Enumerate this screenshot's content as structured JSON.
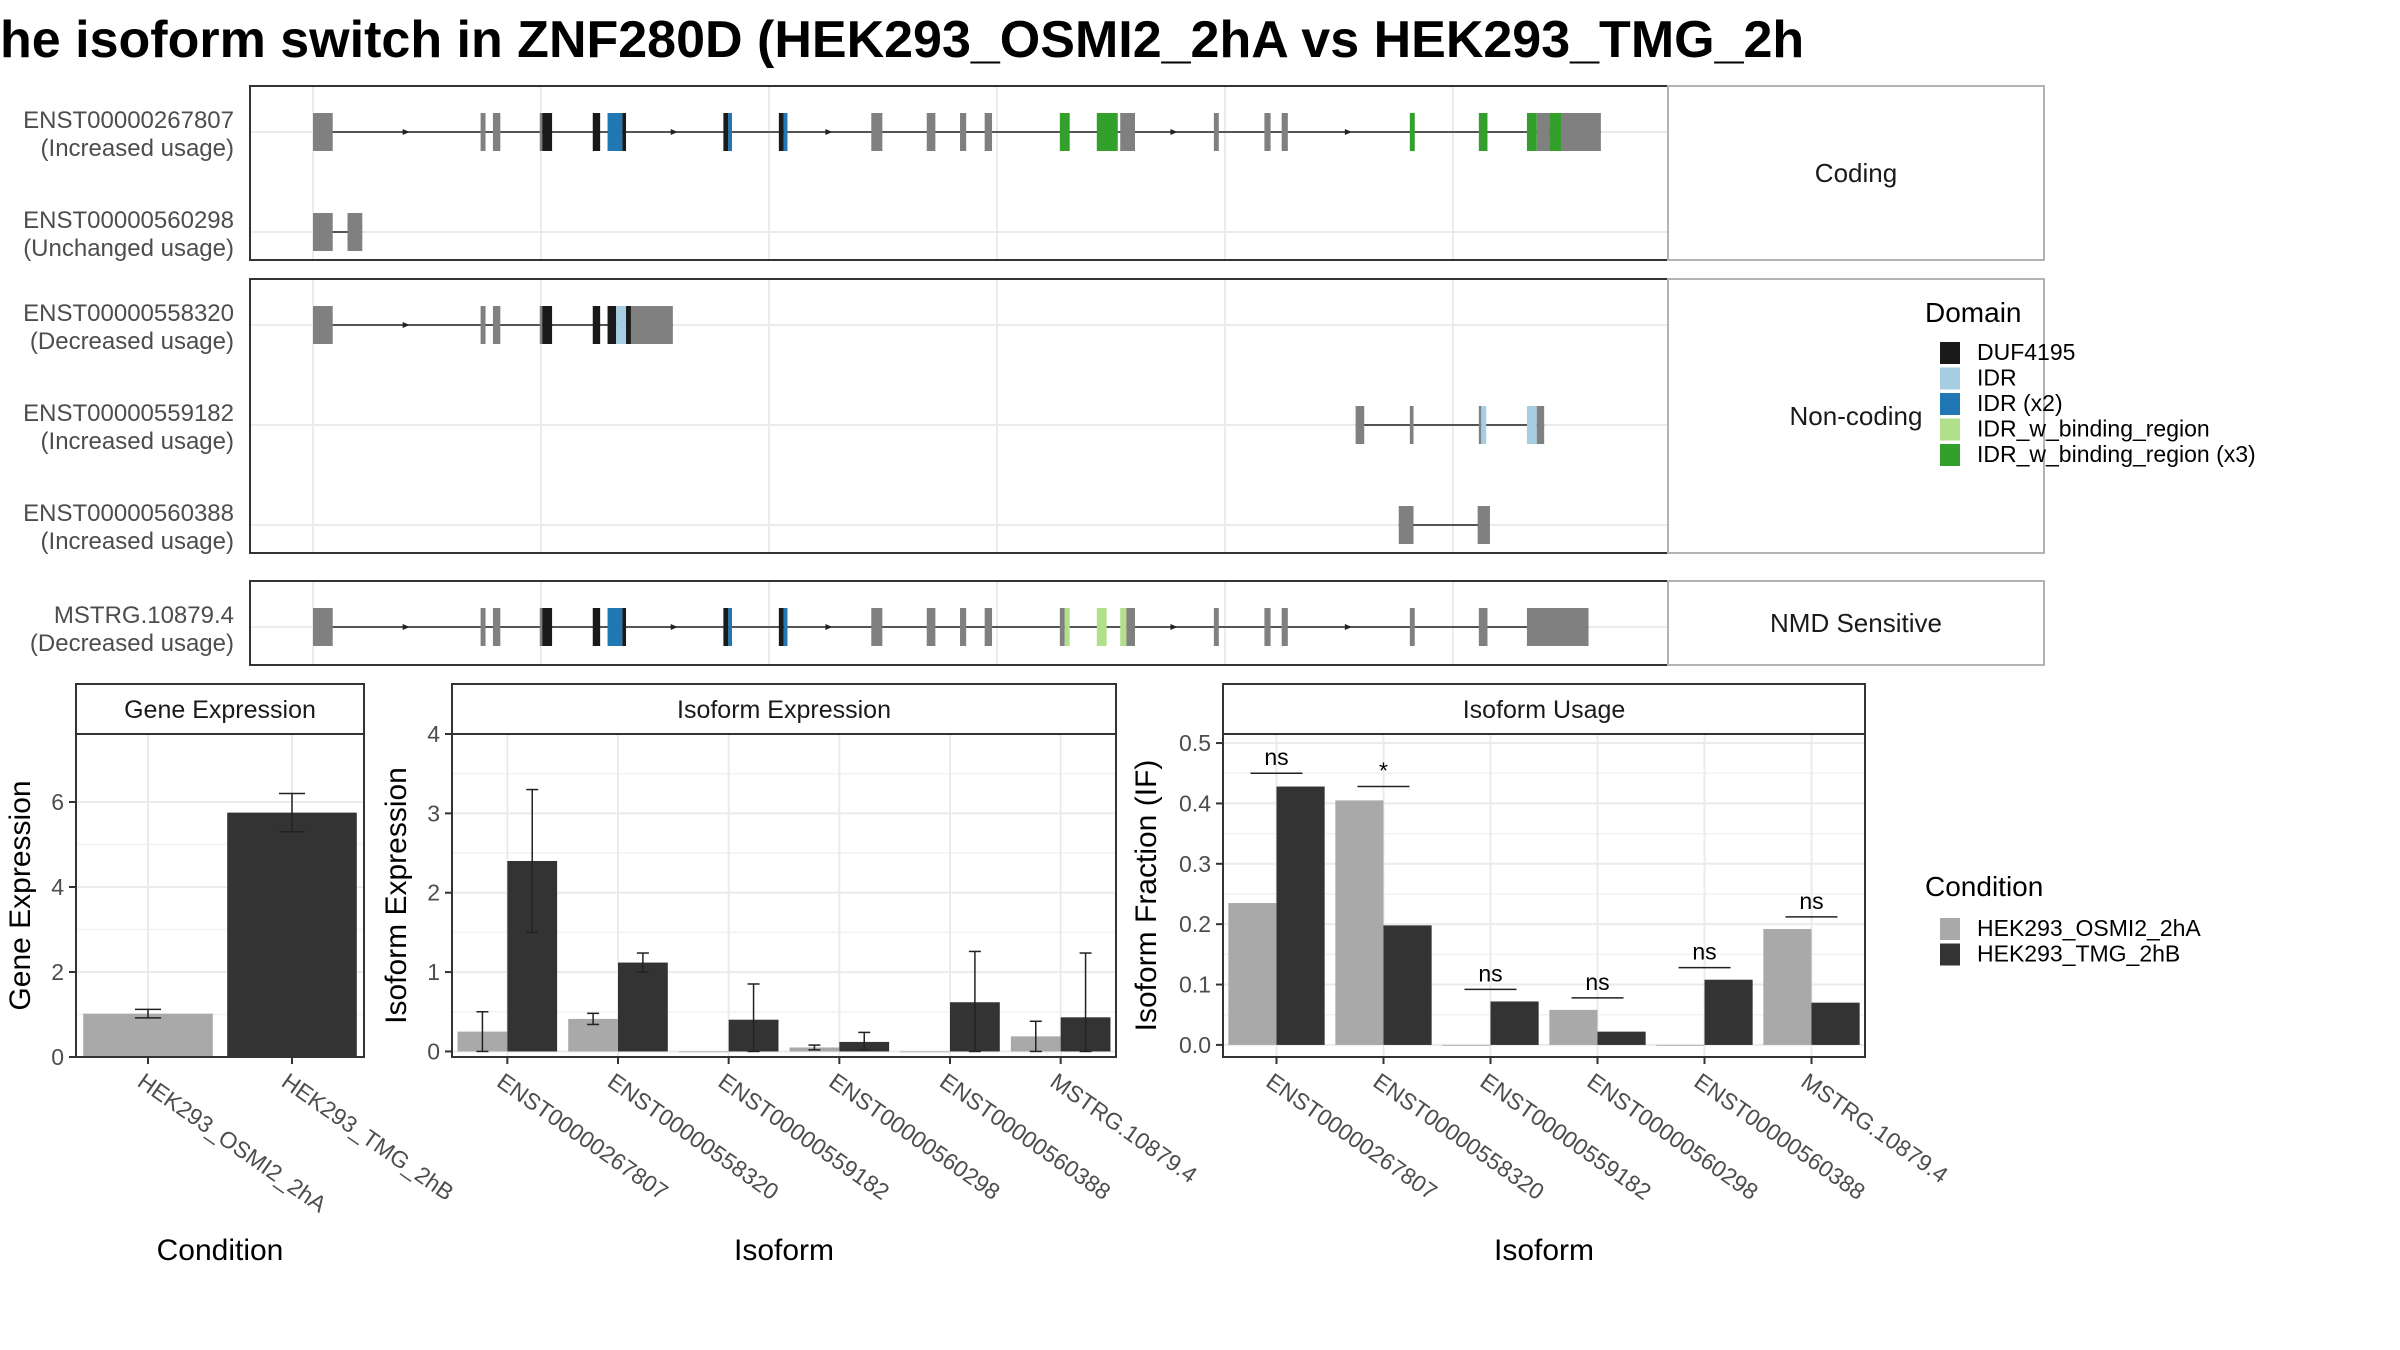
{
  "title": "he isoform switch in ZNF280D (HEK293_OSMI2_2hA vs HEK293_TMG_2h",
  "domain_colors": {
    "DUF4195": "#1a1a1a",
    "IDR": "#a6cee3",
    "IDR (x2)": "#1f78b4",
    "IDR_w_binding_region": "#b2df8a",
    "IDR_w_binding_region (x3)": "#33a02c",
    "none": "#808080"
  },
  "condition_colors": {
    "HEK293_OSMI2_2hA": "#a9a9a9",
    "HEK293_TMG_2hB": "#333333"
  },
  "legend_domain": {
    "title": "Domain",
    "items": [
      "DUF4195",
      "IDR",
      "IDR (x2)",
      "IDR_w_binding_region",
      "IDR_w_binding_region (x3)"
    ]
  },
  "legend_condition": {
    "title": "Condition",
    "items": [
      "HEK293_OSMI2_2hA",
      "HEK293_TMG_2hB"
    ]
  },
  "structure": {
    "panels": [
      {
        "strip": "Coding",
        "isoforms": [
          {
            "id": "ENST00000267807",
            "usage": "(Increased usage)",
            "start": 0,
            "end": 1045,
            "exons": [
              [
                0,
                16,
                "none"
              ],
              [
                136,
                140,
                "none"
              ],
              [
                146,
                152,
                "none"
              ],
              [
                184,
                186,
                "none"
              ],
              [
                186,
                194,
                "DUF4195"
              ],
              [
                227,
                233,
                "DUF4195"
              ],
              [
                239,
                251,
                "IDR (x2)"
              ],
              [
                251,
                254,
                "DUF4195"
              ],
              [
                333,
                337,
                "DUF4195"
              ],
              [
                337,
                340,
                "IDR (x2)"
              ],
              [
                378,
                382,
                "DUF4195"
              ],
              [
                382,
                385,
                "IDR (x2)"
              ],
              [
                453,
                462,
                "none"
              ],
              [
                498,
                505,
                "none"
              ],
              [
                525,
                530,
                "none"
              ],
              [
                545,
                551,
                "none"
              ],
              [
                606,
                614,
                "IDR_w_binding_region (x3)"
              ],
              [
                636,
                653,
                "IDR_w_binding_region (x3)"
              ],
              [
                655,
                667,
                "none"
              ],
              [
                731,
                735,
                "none"
              ],
              [
                772,
                777,
                "none"
              ],
              [
                786,
                791,
                "none"
              ],
              [
                890,
                894,
                "IDR_w_binding_region (x3)"
              ],
              [
                946,
                953,
                "IDR_w_binding_region (x3)"
              ],
              [
                985,
                993,
                "IDR_w_binding_region (x3)"
              ],
              [
                993,
                1003,
                "none"
              ],
              [
                1003,
                1013,
                "IDR_w_binding_region (x3)"
              ],
              [
                1013,
                1045,
                "none"
              ]
            ]
          },
          {
            "id": "ENST00000560298",
            "usage": "(Unchanged usage)",
            "start": 0,
            "end": 40,
            "exons": [
              [
                0,
                16,
                "none"
              ],
              [
                28,
                40,
                "none"
              ]
            ]
          }
        ]
      },
      {
        "strip": "Non-coding",
        "isoforms": [
          {
            "id": "ENST00000558320",
            "usage": "(Decreased usage)",
            "start": 0,
            "end": 292,
            "exons": [
              [
                0,
                16,
                "none"
              ],
              [
                136,
                140,
                "none"
              ],
              [
                146,
                152,
                "none"
              ],
              [
                184,
                186,
                "none"
              ],
              [
                186,
                194,
                "DUF4195"
              ],
              [
                227,
                233,
                "DUF4195"
              ],
              [
                239,
                246,
                "DUF4195"
              ],
              [
                246,
                254,
                "IDR"
              ],
              [
                254,
                258,
                "DUF4195"
              ],
              [
                258,
                292,
                "none"
              ]
            ]
          },
          {
            "id": "ENST00000559182",
            "usage": "(Increased usage)",
            "start": 846,
            "end": 999,
            "exons": [
              [
                846,
                853,
                "none"
              ],
              [
                890,
                893,
                "none"
              ],
              [
                946,
                948,
                "none"
              ],
              [
                948,
                952,
                "IDR"
              ],
              [
                985,
                993,
                "IDR"
              ],
              [
                993,
                999,
                "none"
              ]
            ]
          },
          {
            "id": "ENST00000560388",
            "usage": "(Increased usage)",
            "start": 881,
            "end": 955,
            "exons": [
              [
                881,
                893,
                "none"
              ],
              [
                945,
                955,
                "none"
              ]
            ]
          }
        ]
      },
      {
        "strip": "NMD Sensitive",
        "isoforms": [
          {
            "id": "MSTRG.10879.4",
            "usage": "(Decreased usage)",
            "start": 0,
            "end": 1035,
            "exons": [
              [
                0,
                16,
                "none"
              ],
              [
                136,
                140,
                "none"
              ],
              [
                146,
                152,
                "none"
              ],
              [
                184,
                186,
                "none"
              ],
              [
                186,
                194,
                "DUF4195"
              ],
              [
                227,
                233,
                "DUF4195"
              ],
              [
                239,
                251,
                "IDR (x2)"
              ],
              [
                251,
                254,
                "DUF4195"
              ],
              [
                333,
                337,
                "DUF4195"
              ],
              [
                337,
                340,
                "IDR (x2)"
              ],
              [
                378,
                382,
                "DUF4195"
              ],
              [
                382,
                385,
                "IDR (x2)"
              ],
              [
                453,
                462,
                "none"
              ],
              [
                498,
                505,
                "none"
              ],
              [
                525,
                530,
                "none"
              ],
              [
                545,
                551,
                "none"
              ],
              [
                606,
                610,
                "none"
              ],
              [
                610,
                614,
                "IDR_w_binding_region"
              ],
              [
                636,
                644,
                "IDR_w_binding_region"
              ],
              [
                655,
                660,
                "IDR_w_binding_region"
              ],
              [
                660,
                667,
                "none"
              ],
              [
                731,
                735,
                "none"
              ],
              [
                772,
                777,
                "none"
              ],
              [
                786,
                791,
                "none"
              ],
              [
                890,
                894,
                "none"
              ],
              [
                946,
                953,
                "none"
              ],
              [
                985,
                1035,
                "none"
              ]
            ]
          }
        ]
      }
    ]
  },
  "chart_data": [
    {
      "type": "bar",
      "title": "Gene Expression",
      "xlabel": "Condition",
      "ylabel": "Gene Expression",
      "ylim": [
        0,
        7.6
      ],
      "yticks": [
        0,
        2,
        4,
        6
      ],
      "categories": [
        "HEK293_OSMI2_2hA",
        "HEK293_TMG_2hB"
      ],
      "values": [
        1.02,
        5.75
      ],
      "error_bars": [
        [
          0.92,
          1.12
        ],
        [
          5.3,
          6.2
        ]
      ]
    },
    {
      "type": "bar",
      "title": "Isoform Expression",
      "xlabel": "Isoform",
      "ylabel": "Isoform Expression",
      "ylim": [
        -0.07,
        4.0
      ],
      "yticks": [
        0,
        1,
        2,
        3,
        4
      ],
      "categories": [
        "ENST00000267807",
        "ENST00000558320",
        "ENST00000559182",
        "ENST00000560298",
        "ENST00000560388",
        "MSTRG.10879.4"
      ],
      "series": [
        {
          "name": "HEK293_OSMI2_2hA",
          "values": [
            0.25,
            0.41,
            0.0,
            0.05,
            0.0,
            0.19
          ],
          "errors": [
            [
              0.0,
              0.5
            ],
            [
              0.34,
              0.48
            ],
            [
              0.0,
              0.0
            ],
            [
              0.02,
              0.08
            ],
            [
              0.0,
              0.0
            ],
            [
              0.0,
              0.38
            ]
          ]
        },
        {
          "name": "HEK293_TMG_2hB",
          "values": [
            2.4,
            1.12,
            0.4,
            0.12,
            0.62,
            0.43
          ],
          "errors": [
            [
              1.5,
              3.3
            ],
            [
              1.0,
              1.24
            ],
            [
              0.0,
              0.85
            ],
            [
              0.02,
              0.24
            ],
            [
              0.0,
              1.26
            ],
            [
              0.0,
              1.24
            ]
          ]
        }
      ]
    },
    {
      "type": "bar",
      "title": "Isoform Usage",
      "xlabel": "Isoform",
      "ylabel": "Isoform Fraction (IF)",
      "ylim": [
        -0.02,
        0.515
      ],
      "yticks": [
        0.0,
        0.1,
        0.2,
        0.3,
        0.4,
        0.5
      ],
      "categories": [
        "ENST00000267807",
        "ENST00000558320",
        "ENST00000559182",
        "ENST00000560298",
        "ENST00000560388",
        "MSTRG.10879.4"
      ],
      "series": [
        {
          "name": "HEK293_OSMI2_2hA",
          "values": [
            0.235,
            0.405,
            0.0,
            0.058,
            0.0,
            0.192
          ]
        },
        {
          "name": "HEK293_TMG_2hB",
          "values": [
            0.428,
            0.198,
            0.072,
            0.022,
            0.108,
            0.07
          ]
        }
      ],
      "significance": [
        {
          "label": "ns",
          "y": 0.45
        },
        {
          "label": "*",
          "y": 0.428
        },
        {
          "label": "ns",
          "y": 0.092
        },
        {
          "label": "ns",
          "y": 0.078
        },
        {
          "label": "ns",
          "y": 0.128
        },
        {
          "label": "ns",
          "y": 0.212
        }
      ]
    }
  ]
}
